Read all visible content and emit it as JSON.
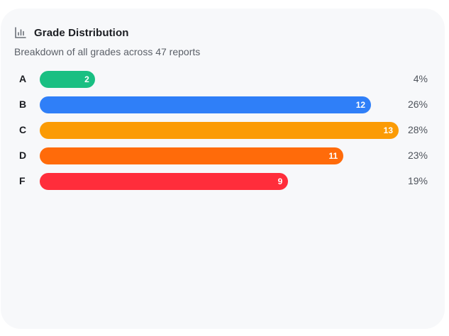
{
  "header": {
    "title": "Grade Distribution",
    "subtitle": "Breakdown of all grades across 47 reports",
    "icon": "bar-chart-icon"
  },
  "colors": {
    "card_bg": "#f7f8fa",
    "A": "#19bf82",
    "B": "#2f7ff8",
    "C": "#fb9b05",
    "D": "#ff6b0a",
    "F": "#ff2d3b"
  },
  "chart_data": {
    "type": "bar",
    "orientation": "horizontal",
    "title": "Grade Distribution",
    "subtitle": "Breakdown of all grades across 47 reports",
    "total": 47,
    "max_value": 13,
    "categories": [
      "A",
      "B",
      "C",
      "D",
      "F"
    ],
    "values": [
      2,
      12,
      13,
      11,
      9
    ],
    "percentages": [
      "4%",
      "26%",
      "28%",
      "23%",
      "19%"
    ],
    "colors": [
      "#19bf82",
      "#2f7ff8",
      "#fb9b05",
      "#ff6b0a",
      "#ff2d3b"
    ],
    "legend": "none",
    "grid": false
  }
}
